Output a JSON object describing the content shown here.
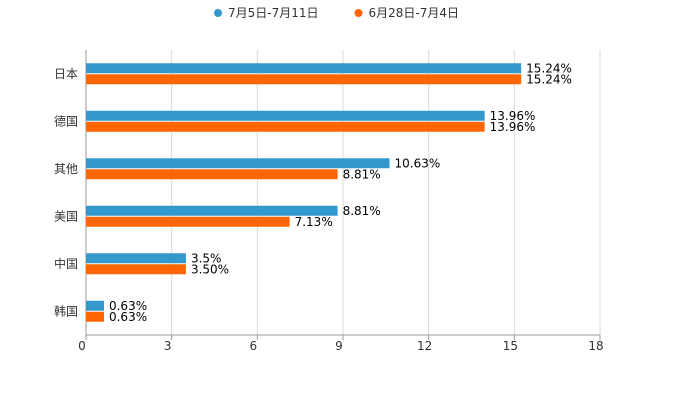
{
  "chart_data": {
    "type": "bar",
    "orientation": "horizontal",
    "categories": [
      "日本",
      "德国",
      "其他",
      "美国",
      "中国",
      "韩国"
    ],
    "series": [
      {
        "name": "7月5日-7月11日",
        "color": "#3399CC",
        "values": [
          15.24,
          13.96,
          10.63,
          8.81,
          3.5,
          0.63
        ],
        "labels": [
          "15.24%",
          "13.96%",
          "10.63%",
          "8.81%",
          "3.5%",
          "0.63%"
        ]
      },
      {
        "name": "6月28日-7月4日",
        "color": "#FF6600",
        "values": [
          15.24,
          13.96,
          8.81,
          7.13,
          3.5,
          0.63
        ],
        "labels": [
          "15.24%",
          "13.96%",
          "8.81%",
          "7.13%",
          "3.50%",
          "0.63%"
        ]
      }
    ],
    "xlim": [
      0,
      18
    ],
    "xticks": [
      "0",
      "3",
      "6",
      "9",
      "12",
      "15",
      "18"
    ],
    "grid": true,
    "legend_position": "top-center"
  }
}
